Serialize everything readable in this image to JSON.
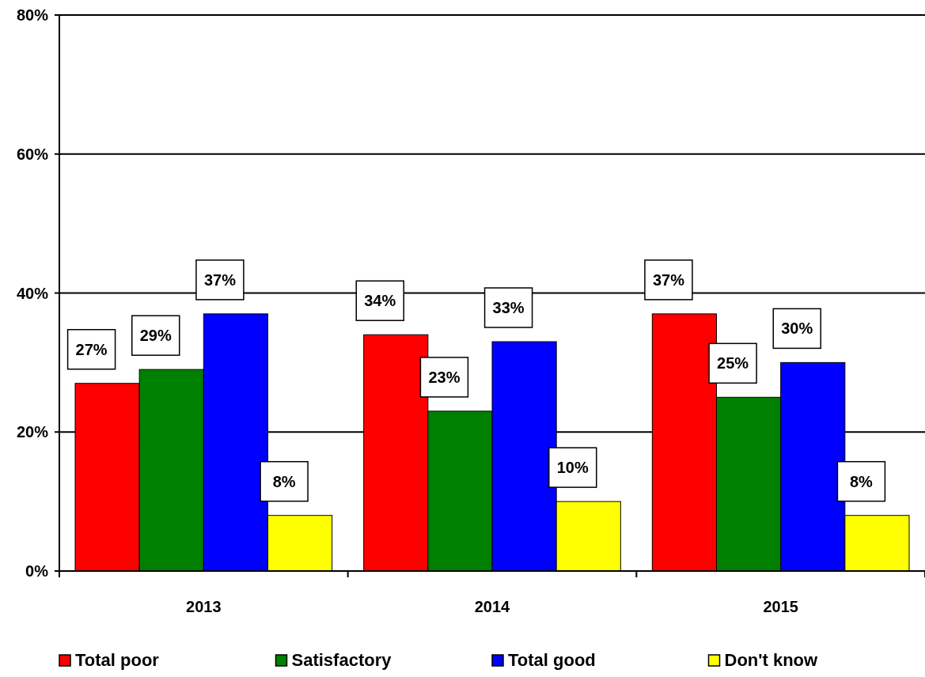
{
  "chart_data": {
    "type": "bar",
    "categories": [
      "2013",
      "2014",
      "2015"
    ],
    "series": [
      {
        "name": "Total poor",
        "color": "#ff0000",
        "values": [
          27,
          34,
          37
        ],
        "value_labels": [
          "27%",
          "34%",
          "37%"
        ]
      },
      {
        "name": "Satisfactory",
        "color": "#008000",
        "values": [
          29,
          23,
          25
        ],
        "value_labels": [
          "29%",
          "23%",
          "25%"
        ]
      },
      {
        "name": "Total good",
        "color": "#0000ff",
        "values": [
          37,
          33,
          30
        ],
        "value_labels": [
          "37%",
          "33%",
          "30%"
        ]
      },
      {
        "name": "Don't know",
        "color": "#ffff00",
        "values": [
          8,
          10,
          8
        ],
        "value_labels": [
          "8%",
          "10%",
          "8%"
        ]
      }
    ],
    "ylim": [
      0,
      80
    ],
    "yticks": [
      {
        "value": 0,
        "label": "0%"
      },
      {
        "value": 20,
        "label": "20%"
      },
      {
        "value": 40,
        "label": "40%"
      },
      {
        "value": 60,
        "label": "60%"
      },
      {
        "value": 80,
        "label": "80%"
      }
    ],
    "grid": "y",
    "legend": "bottom"
  }
}
